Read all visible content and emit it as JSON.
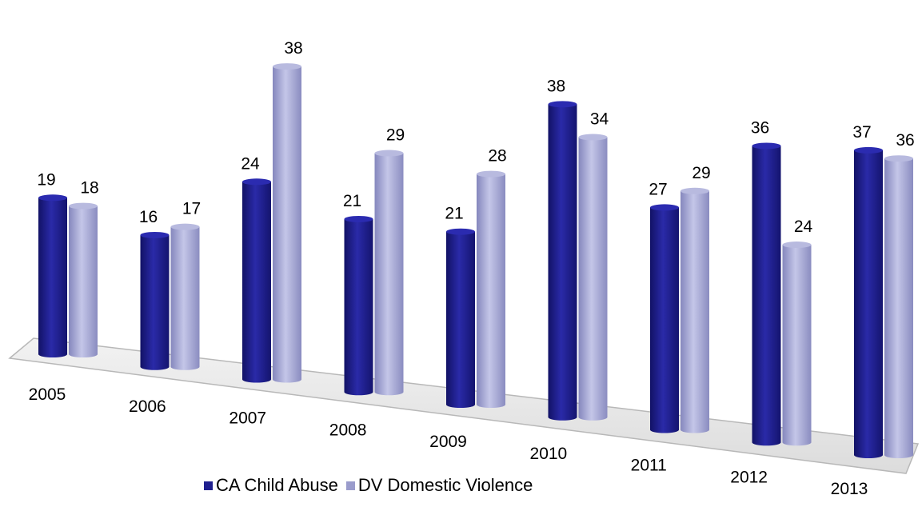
{
  "chart_data": {
    "type": "bar",
    "categories": [
      "2005",
      "2006",
      "2007",
      "2008",
      "2009",
      "2010",
      "2011",
      "2012",
      "2013"
    ],
    "series": [
      {
        "name": "CA Child Abuse",
        "values": [
          19,
          16,
          24,
          21,
          21,
          38,
          27,
          36,
          37
        ],
        "color": "#1f1f8f"
      },
      {
        "name": "DV Domestic Violence",
        "values": [
          18,
          17,
          38,
          29,
          28,
          34,
          29,
          24,
          36
        ],
        "color": "#9a9ccc"
      }
    ],
    "title": "",
    "xlabel": "",
    "ylabel": "",
    "ylim": [
      0,
      40
    ],
    "grid": false,
    "legend_position": "bottom",
    "style": "3d-cylinder"
  }
}
